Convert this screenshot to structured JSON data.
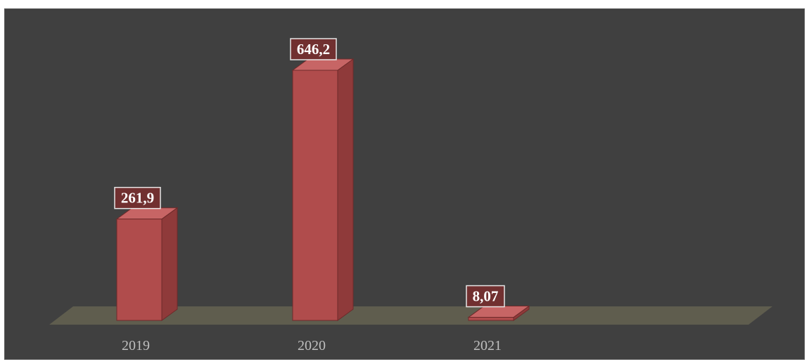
{
  "chart_data": {
    "type": "bar",
    "categories": [
      "2019",
      "2020",
      "2021"
    ],
    "values": [
      261.9,
      646.2,
      8.07
    ],
    "data_labels": [
      "261,9",
      "646,2",
      "8,07"
    ],
    "title": "",
    "xlabel": "",
    "ylabel": "",
    "ylim": [
      0,
      700
    ],
    "grid": false,
    "legend": "none",
    "style": "3d-column"
  },
  "colors": {
    "background": "#404040",
    "bar_front": "#b04c4c",
    "bar_side": "#8f3a3a",
    "bar_top": "#c76565",
    "floor": "#5f5d4e",
    "label_box": "#7a2e2e"
  }
}
